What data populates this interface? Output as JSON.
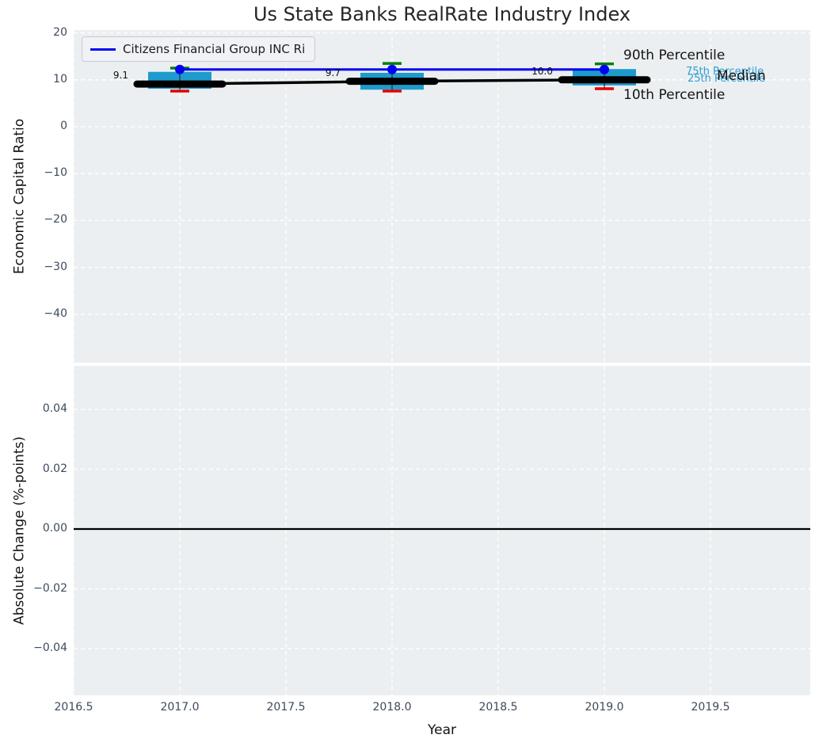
{
  "figure_title": "Us State Banks RealRate Industry Index",
  "colors": {
    "axes_bg": "#eceff1",
    "grid": "#ffffff",
    "box_fill": "#1e9bcd",
    "company_blue": "#0202f2",
    "p90_green": "#008000",
    "p10_red": "#e60000",
    "median_black": "#000000",
    "tick_text": "#3d4a5c",
    "annotation_cyan": "#2a9fd4"
  },
  "legend": {
    "label": "Citizens Financial Group INC Ri"
  },
  "annotations": {
    "p90": "90th Percentile",
    "p75": "75th Percentile",
    "p25": "25th Percentile",
    "median": "Median",
    "p10": "10th Percentile"
  },
  "chart_data": [
    {
      "type": "boxplot-line",
      "title": "Us State Banks RealRate Industry Index",
      "xlabel": "Year",
      "ylabel": "Economic Capital Ratio",
      "x": [
        2017,
        2018,
        2019
      ],
      "boxes": {
        "p90": [
          12.5,
          13.5,
          13.4
        ],
        "p75": [
          11.7,
          11.5,
          12.3
        ],
        "median": [
          9.1,
          9.7,
          10.0
        ],
        "p25": [
          8.1,
          7.9,
          8.8
        ],
        "p10": [
          7.6,
          7.6,
          8.1
        ]
      },
      "median_labels": [
        "9.1",
        "9.7",
        "10.0"
      ],
      "series": [
        {
          "name": "Citizens Financial Group INC Ri",
          "type": "line-marker",
          "values": [
            12.2,
            12.2,
            12.2
          ]
        }
      ],
      "ylim": [
        -50.3,
        20.6
      ],
      "ytick_values": [
        20,
        10,
        0,
        -10,
        -20,
        -30,
        -40
      ],
      "ytick_labels": [
        "20",
        "10",
        "0",
        "−10",
        "−20",
        "−30",
        "−40"
      ],
      "grid": "white-dashed",
      "legend_position": "upper left"
    },
    {
      "type": "line",
      "xlabel": "Year",
      "ylabel": "Absolute Change (%-points)",
      "x": [
        2017,
        2018,
        2019
      ],
      "values": [
        0.0,
        0.0,
        0.0
      ],
      "zero_line": true,
      "ylim": [
        -0.055,
        0.055
      ],
      "ytick_values": [
        0.04,
        0.02,
        0.0,
        -0.02,
        -0.04
      ],
      "ytick_labels": [
        "0.04",
        "0.02",
        "0.00",
        "−0.02",
        "−0.04"
      ],
      "xtick_values": [
        2016.5,
        2017.0,
        2017.5,
        2018.0,
        2018.5,
        2019.0,
        2019.5
      ],
      "xtick_labels": [
        "2016.5",
        "2017.0",
        "2017.5",
        "2018.0",
        "2018.5",
        "2019.0",
        "2019.5"
      ],
      "grid": "white-dashed"
    }
  ]
}
